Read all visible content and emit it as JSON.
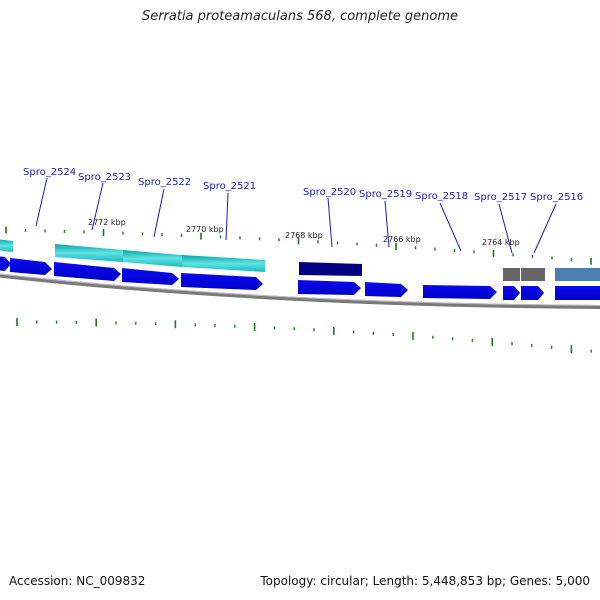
{
  "title": "Serratia proteamaculans 568, complete genome",
  "accession": "Accession: NC_009832",
  "summary": "Topology: circular; Length: 5,448,853 bp; Genes: 5,000",
  "colors": {
    "forward_cds": "#0a0ae6",
    "cyan_feature": "#22c4c8",
    "navy_feature": "#000080",
    "gray_feature": "#666666",
    "steel_feature": "#4a7fb0",
    "tick": "#1e7a1e",
    "label": "#1a1acc",
    "backbone": "#808080"
  },
  "kbp_labels": [
    "2772 kbp",
    "2770 kbp",
    "2768 kbp",
    "2766 kbp",
    "2764 kbp"
  ],
  "genes": [
    "Spro_2524",
    "Spro_2523",
    "Spro_2522",
    "Spro_2521",
    "Spro_2520",
    "Spro_2519",
    "Spro_2518",
    "Spro_2517",
    "Spro_2516"
  ]
}
